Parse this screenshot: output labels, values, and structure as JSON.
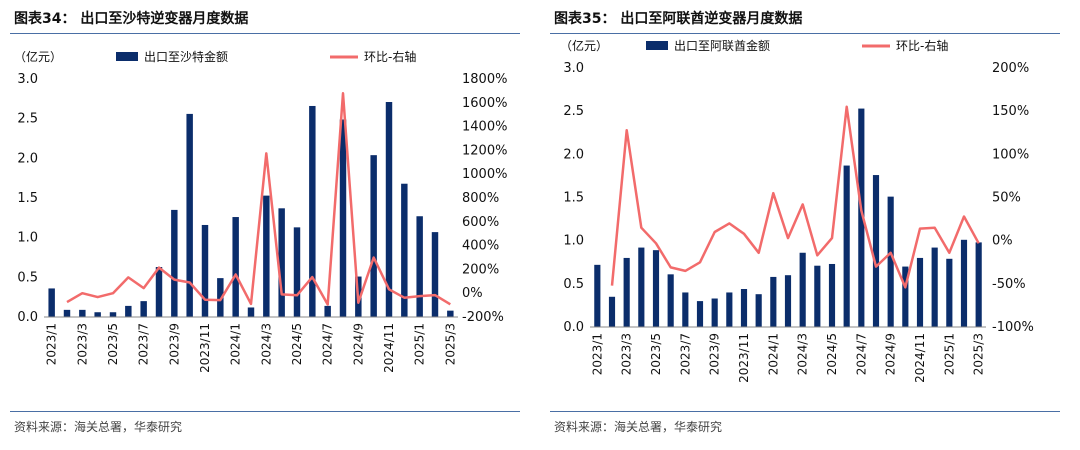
{
  "colors": {
    "bar": "#0b2d6b",
    "line": "#f26b6b",
    "rule": "#4a6fa5"
  },
  "chart_data": [
    {
      "type": "bar",
      "title": "图表34： 出口至沙特逆变器月度数据",
      "source": "资料来源：海关总署，华泰研究",
      "unit": "（亿元）",
      "x": [
        "2023/1",
        "2023/2",
        "2023/3",
        "2023/4",
        "2023/5",
        "2023/6",
        "2023/7",
        "2023/8",
        "2023/9",
        "2023/10",
        "2023/11",
        "2023/12",
        "2024/1",
        "2024/2",
        "2024/3",
        "2024/4",
        "2024/5",
        "2024/6",
        "2024/7",
        "2024/8",
        "2024/9",
        "2024/10",
        "2024/11",
        "2024/12",
        "2025/1",
        "2025/2",
        "2025/3"
      ],
      "x_tick_labels": [
        "2023/1",
        "2023/3",
        "2023/5",
        "2023/7",
        "2023/9",
        "2023/11",
        "2024/1",
        "2024/3",
        "2024/5",
        "2024/7",
        "2024/9",
        "2024/11",
        "2025/1",
        "2025/3"
      ],
      "series": [
        {
          "name": "出口至沙特金额",
          "type": "bar",
          "axis": "left",
          "values": [
            0.36,
            0.09,
            0.09,
            0.06,
            0.06,
            0.14,
            0.2,
            0.63,
            1.35,
            2.56,
            1.16,
            0.49,
            1.26,
            0.12,
            1.53,
            1.37,
            1.13,
            2.66,
            0.14,
            2.49,
            0.51,
            2.04,
            2.71,
            1.68,
            1.27,
            1.07,
            0.08
          ]
        },
        {
          "name": "环比-右轴",
          "type": "line",
          "axis": "right",
          "values": [
            null,
            -75,
            0,
            -33,
            0,
            133,
            43,
            215,
            114,
            90,
            -55,
            -58,
            157,
            -90,
            1175,
            -10,
            -18,
            135,
            -95,
            1680,
            -80,
            300,
            33,
            -38,
            -24,
            -16,
            -93
          ]
        }
      ],
      "ylim": [
        0,
        3.0
      ],
      "y_ticks": [
        "0.0",
        "0.5",
        "1.0",
        "1.5",
        "2.0",
        "2.5",
        "3.0"
      ],
      "y2lim": [
        -200,
        1800
      ],
      "y2_ticks": [
        "-200%",
        "0%",
        "200%",
        "400%",
        "600%",
        "800%",
        "1000%",
        "1200%",
        "1400%",
        "1600%",
        "1800%"
      ],
      "legend_position": "top"
    },
    {
      "type": "bar",
      "title": "图表35： 出口至阿联酋逆变器月度数据",
      "source": "资料来源：海关总署，华泰研究",
      "unit": "（亿元）",
      "x": [
        "2023/1",
        "2023/2",
        "2023/3",
        "2023/4",
        "2023/5",
        "2023/6",
        "2023/7",
        "2023/8",
        "2023/9",
        "2023/10",
        "2023/11",
        "2023/12",
        "2024/1",
        "2024/2",
        "2024/3",
        "2024/4",
        "2024/5",
        "2024/6",
        "2024/7",
        "2024/8",
        "2024/9",
        "2024/10",
        "2024/11",
        "2024/12",
        "2025/1",
        "2025/2",
        "2025/3"
      ],
      "x_tick_labels": [
        "2023/1",
        "2023/3",
        "2023/5",
        "2023/7",
        "2023/9",
        "2023/11",
        "2024/1",
        "2024/3",
        "2024/5",
        "2024/7",
        "2024/9",
        "2024/11",
        "2025/1",
        "2025/3"
      ],
      "series": [
        {
          "name": "出口至阿联酋金额",
          "type": "bar",
          "axis": "left",
          "values": [
            0.72,
            0.35,
            0.8,
            0.92,
            0.89,
            0.61,
            0.4,
            0.3,
            0.33,
            0.4,
            0.44,
            0.38,
            0.58,
            0.6,
            0.86,
            0.71,
            0.73,
            1.87,
            2.53,
            1.76,
            1.51,
            0.7,
            0.8,
            0.92,
            0.79,
            1.01,
            0.98
          ]
        },
        {
          "name": "环比-右轴",
          "type": "line",
          "axis": "right",
          "values": [
            null,
            -52,
            128,
            15,
            -3,
            -31,
            -35,
            -25,
            10,
            20,
            8,
            -14,
            55,
            3,
            42,
            -17,
            3,
            155,
            35,
            -30,
            -14,
            -54,
            14,
            15,
            -14,
            28,
            -3
          ]
        }
      ],
      "ylim": [
        0,
        3.0
      ],
      "y_ticks": [
        "0.0",
        "0.5",
        "1.0",
        "1.5",
        "2.0",
        "2.5",
        "3.0"
      ],
      "y2lim": [
        -100,
        200
      ],
      "y2_ticks": [
        "-100%",
        "-50%",
        "0%",
        "50%",
        "100%",
        "150%",
        "200%"
      ],
      "legend_position": "top"
    }
  ]
}
